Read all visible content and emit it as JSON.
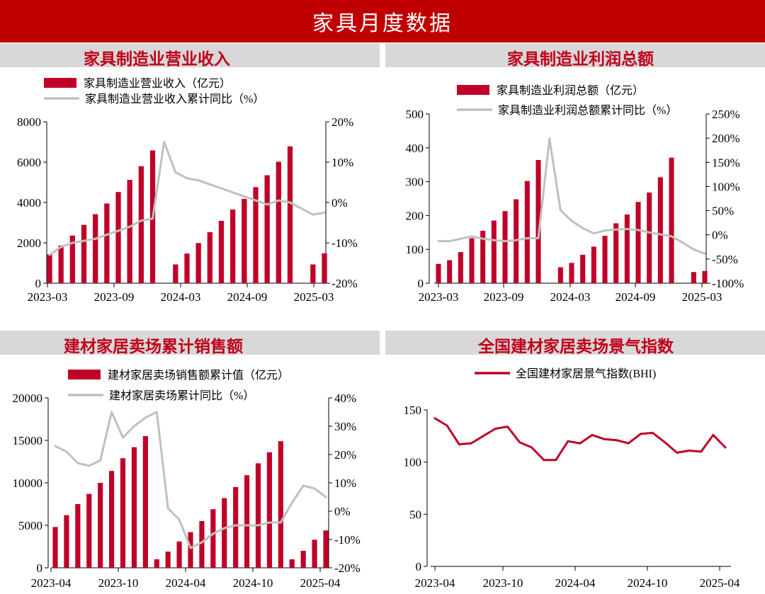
{
  "page_title": "家具月度数据",
  "colors": {
    "red": "#c00028",
    "gray": "#c0c0c0",
    "header_bg": "#d8d8d8",
    "banner": "#c00000"
  },
  "chart_data": [
    {
      "type": "bar+line",
      "title": "家具制造业营业收入",
      "x_tick_labels": [
        "2023-03",
        "2023-09",
        "2024-03",
        "2024-09",
        "2025-03"
      ],
      "left_axis": {
        "ylim": [
          0,
          8000
        ],
        "ticks": [
          "0",
          "2000",
          "4000",
          "6000",
          "8000"
        ]
      },
      "right_axis": {
        "ylim": [
          -20,
          20
        ],
        "ticks": [
          "-20%",
          "-10%",
          "0%",
          "10%",
          "20%"
        ]
      },
      "series": [
        {
          "name": "家具制造业营业收入（亿元）",
          "kind": "bar",
          "axis": "left",
          "values": [
            1430,
            1870,
            2360,
            2890,
            3420,
            3950,
            4520,
            5120,
            5800,
            6580,
            null,
            930,
            1470,
            1990,
            2530,
            3090,
            3650,
            4180,
            4760,
            5350,
            6020,
            6780,
            null,
            930,
            1480
          ]
        },
        {
          "name": "家具制造业营业收入累计同比（%）",
          "kind": "line",
          "axis": "right",
          "values": [
            -13,
            -11,
            -10,
            -9.5,
            -9,
            -8,
            -7,
            -6,
            -4.5,
            -4,
            15,
            7.5,
            6,
            5.5,
            4.5,
            3.5,
            2.5,
            1.5,
            0.5,
            -0.5,
            0.5,
            0,
            -1.5,
            -3,
            -2.5
          ]
        }
      ]
    },
    {
      "type": "bar+line",
      "title": "家具制造业利润总额",
      "x_tick_labels": [
        "2023-03",
        "2023-09",
        "2024-03",
        "2024-09",
        "2025-03"
      ],
      "left_axis": {
        "ylim": [
          0,
          500
        ],
        "ticks": [
          "0",
          "100",
          "200",
          "300",
          "400",
          "500"
        ]
      },
      "right_axis": {
        "ylim": [
          -100,
          250
        ],
        "ticks": [
          "-100%",
          "-50%",
          "0%",
          "50%",
          "100%",
          "150%",
          "200%",
          "250%"
        ]
      },
      "series": [
        {
          "name": "家具制造业利润总额（亿元）",
          "kind": "bar",
          "axis": "left",
          "values": [
            57,
            68,
            92,
            133,
            155,
            185,
            213,
            248,
            302,
            364,
            null,
            47,
            60,
            84,
            108,
            140,
            177,
            203,
            240,
            268,
            313,
            371,
            null,
            33,
            36
          ]
        },
        {
          "name": "家具制造业利润总额累计同比（%）",
          "kind": "line",
          "axis": "right",
          "values": [
            -13,
            -13,
            -8,
            -3,
            -8,
            -11,
            -13,
            -11,
            -7,
            -7,
            199,
            51,
            29,
            14,
            3,
            9,
            11,
            12,
            10,
            5,
            1,
            -3,
            -16,
            -30,
            -39
          ]
        }
      ]
    },
    {
      "type": "bar+line",
      "title": "建材家居卖场累计销售额",
      "x_tick_labels": [
        "2023-04",
        "2023-10",
        "2024-04",
        "2024-10",
        "2025-04"
      ],
      "left_axis": {
        "ylim": [
          0,
          20000
        ],
        "ticks": [
          "0",
          "5000",
          "10000",
          "15000",
          "20000"
        ]
      },
      "right_axis": {
        "ylim": [
          -20,
          40
        ],
        "ticks": [
          "-20%",
          "-10%",
          "0%",
          "10%",
          "20%",
          "30%",
          "40%"
        ]
      },
      "series": [
        {
          "name": "建材家居卖场销售额累计值（亿元）",
          "kind": "bar",
          "axis": "left",
          "values": [
            4800,
            6200,
            7500,
            8700,
            10000,
            11400,
            12900,
            14200,
            15500,
            1000,
            1900,
            3100,
            4200,
            5500,
            6900,
            8200,
            9500,
            10900,
            12300,
            13600,
            14900,
            1000,
            2000,
            3300,
            4400
          ]
        },
        {
          "name": "建材家居卖场累计同比（%）",
          "kind": "line",
          "axis": "right",
          "values": [
            23,
            21,
            17,
            16,
            18,
            35,
            26,
            30,
            33,
            35,
            1,
            -3,
            -13,
            -11,
            -8,
            -6,
            -5,
            -5,
            -5,
            -4,
            -4,
            3,
            9,
            8,
            5
          ]
        }
      ]
    },
    {
      "type": "line",
      "title": "全国建材家居卖场景气指数",
      "x_tick_labels": [
        "2023-04",
        "2023-10",
        "2024-04",
        "2024-10",
        "2025-04"
      ],
      "left_axis": {
        "ylim": [
          0,
          150
        ],
        "ticks": [
          "0",
          "50",
          "100",
          "150"
        ]
      },
      "series": [
        {
          "name": "全国建材家居景气指数(BHI)",
          "kind": "line",
          "axis": "left",
          "values": [
            142,
            135,
            117,
            118,
            125,
            132,
            134,
            119,
            114,
            102,
            102,
            120,
            118,
            126,
            122,
            121,
            118,
            127,
            128,
            119,
            109,
            111,
            110,
            126,
            114
          ]
        }
      ]
    }
  ]
}
